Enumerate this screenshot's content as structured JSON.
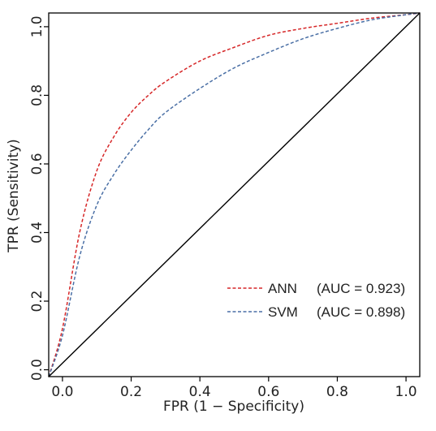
{
  "chart_data": {
    "type": "line",
    "xlabel": "FPR (1 − Specificity)",
    "ylabel": "TPR (Sensitivity)",
    "xlim": [
      -0.04,
      1.04
    ],
    "ylim": [
      -0.02,
      1.04
    ],
    "x_ticks": [
      "0.0",
      "0.2",
      "0.4",
      "0.6",
      "0.8",
      "1.0"
    ],
    "y_ticks": [
      "0.0",
      "0.2",
      "0.4",
      "0.6",
      "0.8",
      "1.0"
    ],
    "grid": false,
    "legend_position": "bottom-right",
    "series": [
      {
        "name": "ANN",
        "auc_label": "(AUC = 0.923)",
        "color": "#d62728",
        "style": "dashed",
        "x": [
          -0.04,
          0.0,
          0.05,
          0.1,
          0.15,
          0.2,
          0.25,
          0.3,
          0.4,
          0.5,
          0.6,
          0.7,
          0.8,
          0.9,
          1.0,
          1.04
        ],
        "y": [
          -0.02,
          0.12,
          0.4,
          0.58,
          0.68,
          0.75,
          0.8,
          0.84,
          0.9,
          0.94,
          0.975,
          0.995,
          1.01,
          1.025,
          1.035,
          1.04
        ]
      },
      {
        "name": "SVM",
        "auc_label": "(AUC = 0.898)",
        "color": "#4a6fa5",
        "style": "dashed",
        "x": [
          -0.04,
          0.0,
          0.05,
          0.1,
          0.15,
          0.2,
          0.25,
          0.3,
          0.4,
          0.5,
          0.6,
          0.7,
          0.8,
          0.9,
          1.0,
          1.04
        ],
        "y": [
          -0.02,
          0.1,
          0.33,
          0.48,
          0.57,
          0.64,
          0.7,
          0.75,
          0.82,
          0.88,
          0.925,
          0.965,
          0.995,
          1.02,
          1.035,
          1.04
        ]
      },
      {
        "name": "",
        "color": "#000000",
        "style": "solid",
        "x": [
          -0.04,
          1.04
        ],
        "y": [
          -0.02,
          1.04
        ]
      }
    ]
  }
}
